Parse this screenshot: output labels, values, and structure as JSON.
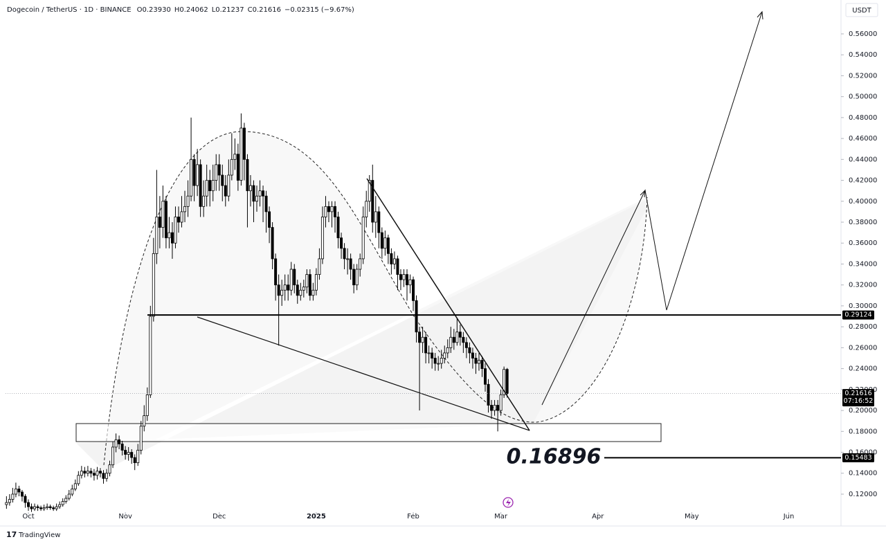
{
  "chart_data": {
    "type": "candlestick",
    "symbol": "Dogecoin / TetherUS · 1D · BINANCE",
    "ohlc_legend": [
      "O0.23930",
      "H0.24062",
      "L0.21237",
      "C0.21616",
      "−0.02315 (−9.67%)"
    ],
    "currency": "USDT",
    "up_color": "#ffffff",
    "down_color": "#000000",
    "grid": false,
    "xlim": [
      -0.3,
      266.7
    ],
    "xticks": [
      {
        "value": 7,
        "label": "Oct"
      },
      {
        "value": 38,
        "label": "Nov"
      },
      {
        "value": 68,
        "label": "Dec"
      },
      {
        "value": 99,
        "label": "2025"
      },
      {
        "value": 130,
        "label": "Feb"
      },
      {
        "value": 158,
        "label": "Mar"
      },
      {
        "value": 189,
        "label": "Apr"
      },
      {
        "value": 219,
        "label": "May"
      },
      {
        "value": 250,
        "label": "Jun"
      }
    ],
    "ylim": [
      0.1041,
      0.5924
    ],
    "yticks": [
      {
        "value": 0.12,
        "label": "0.12000"
      },
      {
        "value": 0.14,
        "label": "0.14000"
      },
      {
        "value": 0.16,
        "label": "0.16000"
      },
      {
        "value": 0.18,
        "label": "0.18000"
      },
      {
        "value": 0.2,
        "label": "0.20000"
      },
      {
        "value": 0.22,
        "label": "0.22000"
      },
      {
        "value": 0.24,
        "label": "0.24000"
      },
      {
        "value": 0.26,
        "label": "0.26000"
      },
      {
        "value": 0.28,
        "label": "0.28000"
      },
      {
        "value": 0.3,
        "label": "0.30000"
      },
      {
        "value": 0.32,
        "label": "0.32000"
      },
      {
        "value": 0.34,
        "label": "0.34000"
      },
      {
        "value": 0.36,
        "label": "0.36000"
      },
      {
        "value": 0.38,
        "label": "0.38000"
      },
      {
        "value": 0.4,
        "label": "0.40000"
      },
      {
        "value": 0.42,
        "label": "0.42000"
      },
      {
        "value": 0.44,
        "label": "0.44000"
      },
      {
        "value": 0.46,
        "label": "0.46000"
      },
      {
        "value": 0.48,
        "label": "0.48000"
      },
      {
        "value": 0.5,
        "label": "0.50000"
      },
      {
        "value": 0.52,
        "label": "0.52000"
      },
      {
        "value": 0.54,
        "label": "0.54000"
      },
      {
        "value": 0.56,
        "label": "0.56000"
      }
    ],
    "open": [
      0.11,
      0.112,
      0.115,
      0.12,
      0.125,
      0.122,
      0.118,
      0.112,
      0.108,
      0.106,
      0.108,
      0.107,
      0.106,
      0.107,
      0.108,
      0.107,
      0.106,
      0.108,
      0.11,
      0.113,
      0.116,
      0.12,
      0.125,
      0.13,
      0.138,
      0.142,
      0.14,
      0.142,
      0.14,
      0.138,
      0.142,
      0.14,
      0.135,
      0.14,
      0.148,
      0.165,
      0.172,
      0.168,
      0.162,
      0.158,
      0.16,
      0.155,
      0.15,
      0.162,
      0.185,
      0.195,
      0.215,
      0.29,
      0.35,
      0.385,
      0.375,
      0.4,
      0.365,
      0.37,
      0.36,
      0.385,
      0.38,
      0.39,
      0.395,
      0.405,
      0.44,
      0.415,
      0.435,
      0.395,
      0.405,
      0.42,
      0.41,
      0.42,
      0.435,
      0.425,
      0.415,
      0.405,
      0.425,
      0.44,
      0.445,
      0.42,
      0.47,
      0.44,
      0.41,
      0.415,
      0.4,
      0.405,
      0.41,
      0.405,
      0.39,
      0.375,
      0.345,
      0.32,
      0.31,
      0.315,
      0.32,
      0.315,
      0.335,
      0.32,
      0.31,
      0.315,
      0.318,
      0.33,
      0.31,
      0.315,
      0.33,
      0.345,
      0.385,
      0.395,
      0.39,
      0.395,
      0.385,
      0.365,
      0.355,
      0.345,
      0.345,
      0.335,
      0.32,
      0.335,
      0.345,
      0.385,
      0.4,
      0.42,
      0.38,
      0.39,
      0.37,
      0.355,
      0.365,
      0.35,
      0.34,
      0.345,
      0.33,
      0.325,
      0.33,
      0.32,
      0.325,
      0.305,
      0.275,
      0.265,
      0.27,
      0.255,
      0.255,
      0.25,
      0.245,
      0.245,
      0.25,
      0.255,
      0.26,
      0.27,
      0.265,
      0.275,
      0.27,
      0.265,
      0.26,
      0.255,
      0.25,
      0.245,
      0.248,
      0.24,
      0.225,
      0.205,
      0.2,
      0.205,
      0.2,
      0.215,
      0.2393
    ],
    "high": [
      0.118,
      0.12,
      0.126,
      0.131,
      0.128,
      0.124,
      0.12,
      0.115,
      0.111,
      0.111,
      0.11,
      0.109,
      0.11,
      0.111,
      0.11,
      0.109,
      0.111,
      0.113,
      0.116,
      0.119,
      0.124,
      0.129,
      0.134,
      0.142,
      0.147,
      0.146,
      0.147,
      0.145,
      0.144,
      0.146,
      0.145,
      0.143,
      0.144,
      0.152,
      0.17,
      0.178,
      0.176,
      0.171,
      0.166,
      0.165,
      0.163,
      0.158,
      0.168,
      0.19,
      0.205,
      0.222,
      0.3,
      0.365,
      0.43,
      0.405,
      0.415,
      0.405,
      0.385,
      0.38,
      0.395,
      0.395,
      0.405,
      0.41,
      0.42,
      0.48,
      0.445,
      0.45,
      0.44,
      0.42,
      0.435,
      0.43,
      0.435,
      0.445,
      0.445,
      0.435,
      0.425,
      0.44,
      0.465,
      0.46,
      0.455,
      0.484,
      0.475,
      0.445,
      0.425,
      0.42,
      0.415,
      0.42,
      0.415,
      0.41,
      0.395,
      0.38,
      0.35,
      0.33,
      0.325,
      0.33,
      0.33,
      0.342,
      0.34,
      0.325,
      0.322,
      0.325,
      0.335,
      0.335,
      0.322,
      0.336,
      0.355,
      0.395,
      0.405,
      0.4,
      0.4,
      0.4,
      0.39,
      0.37,
      0.36,
      0.355,
      0.35,
      0.34,
      0.34,
      0.35,
      0.395,
      0.41,
      0.425,
      0.435,
      0.405,
      0.395,
      0.375,
      0.372,
      0.368,
      0.355,
      0.352,
      0.348,
      0.335,
      0.335,
      0.335,
      0.33,
      0.328,
      0.31,
      0.28,
      0.28,
      0.275,
      0.262,
      0.26,
      0.255,
      0.252,
      0.258,
      0.262,
      0.268,
      0.28,
      0.278,
      0.288,
      0.282,
      0.275,
      0.27,
      0.265,
      0.26,
      0.255,
      0.255,
      0.252,
      0.245,
      0.23,
      0.21,
      0.21,
      0.21,
      0.22,
      0.242,
      0.24062
    ],
    "low": [
      0.106,
      0.109,
      0.112,
      0.117,
      0.118,
      0.113,
      0.107,
      0.104,
      0.103,
      0.104,
      0.104,
      0.104,
      0.104,
      0.105,
      0.105,
      0.104,
      0.104,
      0.106,
      0.108,
      0.111,
      0.114,
      0.118,
      0.123,
      0.128,
      0.135,
      0.136,
      0.137,
      0.136,
      0.133,
      0.134,
      0.136,
      0.13,
      0.132,
      0.137,
      0.145,
      0.16,
      0.163,
      0.157,
      0.153,
      0.152,
      0.149,
      0.143,
      0.147,
      0.158,
      0.18,
      0.19,
      0.212,
      0.285,
      0.34,
      0.355,
      0.365,
      0.355,
      0.355,
      0.345,
      0.355,
      0.37,
      0.375,
      0.38,
      0.385,
      0.4,
      0.4,
      0.405,
      0.385,
      0.385,
      0.395,
      0.395,
      0.4,
      0.41,
      0.41,
      0.4,
      0.395,
      0.4,
      0.42,
      0.43,
      0.41,
      0.415,
      0.42,
      0.375,
      0.395,
      0.38,
      0.39,
      0.395,
      0.38,
      0.37,
      0.36,
      0.335,
      0.305,
      0.262,
      0.3,
      0.305,
      0.305,
      0.31,
      0.312,
      0.302,
      0.305,
      0.308,
      0.312,
      0.305,
      0.305,
      0.31,
      0.325,
      0.34,
      0.375,
      0.38,
      0.375,
      0.37,
      0.355,
      0.345,
      0.335,
      0.33,
      0.325,
      0.312,
      0.315,
      0.328,
      0.34,
      0.375,
      0.39,
      0.37,
      0.365,
      0.355,
      0.345,
      0.348,
      0.34,
      0.33,
      0.335,
      0.315,
      0.315,
      0.318,
      0.305,
      0.312,
      0.295,
      0.265,
      0.2,
      0.255,
      0.245,
      0.245,
      0.24,
      0.238,
      0.238,
      0.24,
      0.245,
      0.25,
      0.255,
      0.258,
      0.262,
      0.262,
      0.255,
      0.25,
      0.245,
      0.24,
      0.235,
      0.238,
      0.232,
      0.218,
      0.198,
      0.192,
      0.195,
      0.18,
      0.195,
      0.212,
      0.21237
    ],
    "close": [
      0.112,
      0.115,
      0.12,
      0.125,
      0.122,
      0.118,
      0.112,
      0.108,
      0.106,
      0.108,
      0.107,
      0.106,
      0.107,
      0.108,
      0.107,
      0.106,
      0.108,
      0.11,
      0.113,
      0.116,
      0.12,
      0.125,
      0.13,
      0.138,
      0.142,
      0.14,
      0.142,
      0.14,
      0.138,
      0.142,
      0.14,
      0.135,
      0.14,
      0.148,
      0.165,
      0.172,
      0.168,
      0.162,
      0.158,
      0.16,
      0.155,
      0.15,
      0.162,
      0.185,
      0.195,
      0.215,
      0.29,
      0.35,
      0.385,
      0.375,
      0.4,
      0.365,
      0.37,
      0.36,
      0.385,
      0.38,
      0.39,
      0.395,
      0.405,
      0.44,
      0.415,
      0.435,
      0.395,
      0.405,
      0.42,
      0.41,
      0.42,
      0.435,
      0.425,
      0.415,
      0.405,
      0.425,
      0.44,
      0.445,
      0.42,
      0.47,
      0.44,
      0.41,
      0.415,
      0.4,
      0.405,
      0.41,
      0.405,
      0.39,
      0.375,
      0.345,
      0.32,
      0.31,
      0.315,
      0.32,
      0.315,
      0.335,
      0.32,
      0.31,
      0.315,
      0.318,
      0.33,
      0.31,
      0.315,
      0.33,
      0.345,
      0.385,
      0.395,
      0.39,
      0.395,
      0.385,
      0.365,
      0.355,
      0.345,
      0.345,
      0.335,
      0.32,
      0.335,
      0.345,
      0.385,
      0.4,
      0.42,
      0.38,
      0.39,
      0.37,
      0.355,
      0.365,
      0.35,
      0.34,
      0.345,
      0.33,
      0.325,
      0.33,
      0.32,
      0.325,
      0.305,
      0.275,
      0.265,
      0.27,
      0.255,
      0.255,
      0.25,
      0.245,
      0.245,
      0.25,
      0.255,
      0.26,
      0.27,
      0.265,
      0.275,
      0.27,
      0.265,
      0.26,
      0.255,
      0.25,
      0.245,
      0.248,
      0.24,
      0.225,
      0.205,
      0.2,
      0.205,
      0.2,
      0.215,
      0.2393,
      0.21616
    ],
    "levels": [
      {
        "value": 0.29124,
        "label": "0.29124"
      },
      {
        "value": 0.15483,
        "label": "0.15483"
      }
    ],
    "last_price": {
      "value": 0.21616,
      "label": "0.21616",
      "countdown": "07:16:52"
    },
    "annotations": [
      "0.16896"
    ]
  },
  "brand": "TradingView"
}
